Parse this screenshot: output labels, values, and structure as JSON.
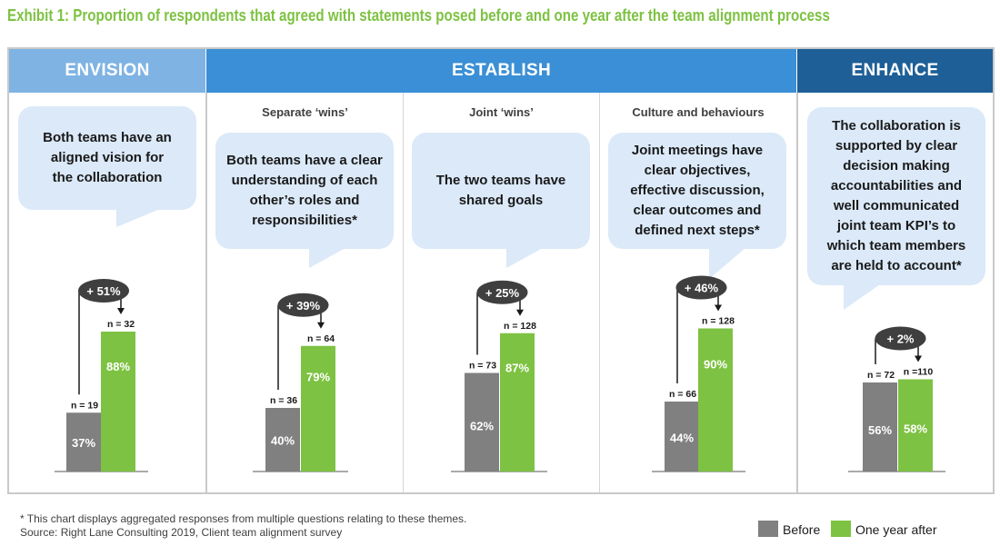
{
  "title": "Exhibit 1: Proportion of respondents that agreed with statements posed before and one year after the team alignment process",
  "headers": {
    "envision": "ENVISION",
    "establish": "ESTABLISH",
    "enhance": "ENHANCE"
  },
  "colors": {
    "envision_header": "#7fb3e3",
    "establish_header": "#3a8fd6",
    "enhance_header": "#1d5f96",
    "bubble": "#dbe9f8",
    "before": "#808080",
    "after": "#7dc242",
    "change_badge": "#3f3f3f"
  },
  "subheadings": {
    "separate_wins": "Separate ‘wins’",
    "joint_wins": "Joint ‘wins’",
    "culture": "Culture and behaviours"
  },
  "statements": {
    "vision": "Both teams have an aligned vision for the collaboration",
    "roles": "Both teams have a clear understanding of each other’s roles and responsibilities*",
    "goals": "The two teams have shared goals",
    "meetings": "Joint meetings have clear objectives, effective discussion, clear outcomes and defined next steps*",
    "collab": "The collaboration is supported by clear decision making accountabilities and well communicated joint team KPI’s to which team members are held to account*"
  },
  "chart_data": {
    "type": "bar",
    "categories": [
      "Both teams have an aligned vision for the collaboration",
      "Both teams have a clear understanding of each other’s roles and responsibilities*",
      "The two teams have shared goals",
      "Joint meetings have clear objectives, effective discussion, clear outcomes and defined next steps*",
      "The collaboration is supported by clear decision making accountabilities and well communicated joint team KPI’s to which team members are held to account*"
    ],
    "series": [
      {
        "name": "Before",
        "values": [
          37,
          40,
          62,
          44,
          56
        ],
        "value_labels": [
          "37%",
          "40%",
          "62%",
          "44%",
          "56%"
        ],
        "n_labels": [
          "n = 19",
          "n = 36",
          "n = 73",
          "n = 66",
          "n = 72"
        ]
      },
      {
        "name": "One year after",
        "values": [
          88,
          79,
          87,
          90,
          58
        ],
        "value_labels": [
          "88%",
          "79%",
          "87%",
          "90%",
          "58%"
        ],
        "n_labels": [
          "n = 32",
          "n = 64",
          "n = 128",
          "n = 128",
          "n =110"
        ]
      }
    ],
    "change_labels": [
      "+ 51%",
      "+ 39%",
      "+ 25%",
      "+ 46%",
      "+ 2%"
    ],
    "ylim": [
      0,
      100
    ],
    "legend_position": "bottom-right"
  },
  "footnote": "* This chart displays aggregated responses from multiple questions relating to these themes.",
  "source": "Source: Right Lane Consulting 2019, Client team alignment survey",
  "legend": {
    "before": "Before",
    "after": "One year after"
  }
}
